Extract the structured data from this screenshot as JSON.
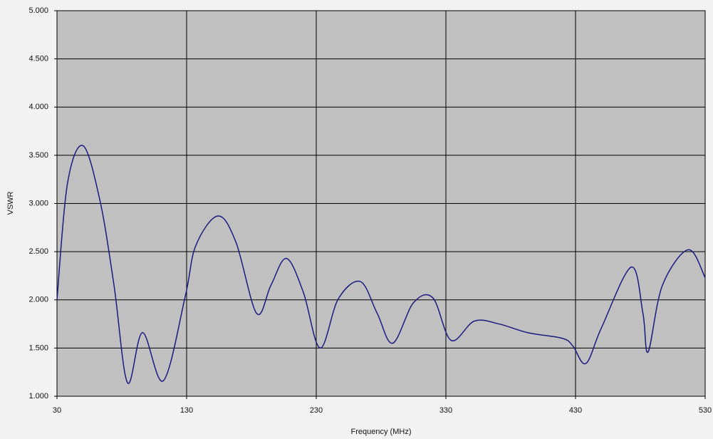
{
  "chart_data": {
    "type": "line",
    "x_label": "Frequency (MHz)",
    "y_label": "VSWR",
    "x": [
      30,
      38,
      50,
      63,
      74,
      84.4,
      96,
      112,
      129,
      137,
      154,
      168,
      184,
      195,
      207,
      220,
      233,
      247,
      264,
      277,
      289,
      305,
      320,
      334,
      352,
      371,
      393,
      420,
      428,
      438,
      450,
      473,
      482,
      486,
      497,
      517,
      530
    ],
    "series": [
      {
        "name": "VSWR",
        "color": "#1a1a80",
        "values": [
          2.0,
          3.2,
          3.6,
          3.04,
          2.15,
          1.14,
          1.66,
          1.16,
          2.04,
          2.56,
          2.87,
          2.6,
          1.86,
          2.15,
          2.43,
          2.08,
          1.5,
          2.01,
          2.19,
          1.86,
          1.55,
          1.97,
          2.02,
          1.58,
          1.78,
          1.75,
          1.66,
          1.6,
          1.52,
          1.34,
          1.71,
          2.34,
          1.86,
          1.46,
          2.15,
          2.52,
          2.23
        ]
      }
    ],
    "xlim": [
      30,
      530
    ],
    "xticks": [
      30,
      130,
      230,
      330,
      430,
      530
    ],
    "ylim": [
      1,
      5
    ],
    "yticks": [
      {
        "value": 1,
        "label": "1.000"
      },
      {
        "value": 1.5,
        "label": "1.500"
      },
      {
        "value": 2,
        "label": "2.000"
      },
      {
        "value": 2.5,
        "label": "2.500"
      },
      {
        "value": 3,
        "label": "3.000"
      },
      {
        "value": 3.5,
        "label": "3.500"
      },
      {
        "value": 4,
        "label": "4.000"
      },
      {
        "value": 4.5,
        "label": "4.500"
      },
      {
        "value": 5,
        "label": "5.000"
      }
    ],
    "grid": true,
    "plot_background": "#c0c0c0"
  }
}
